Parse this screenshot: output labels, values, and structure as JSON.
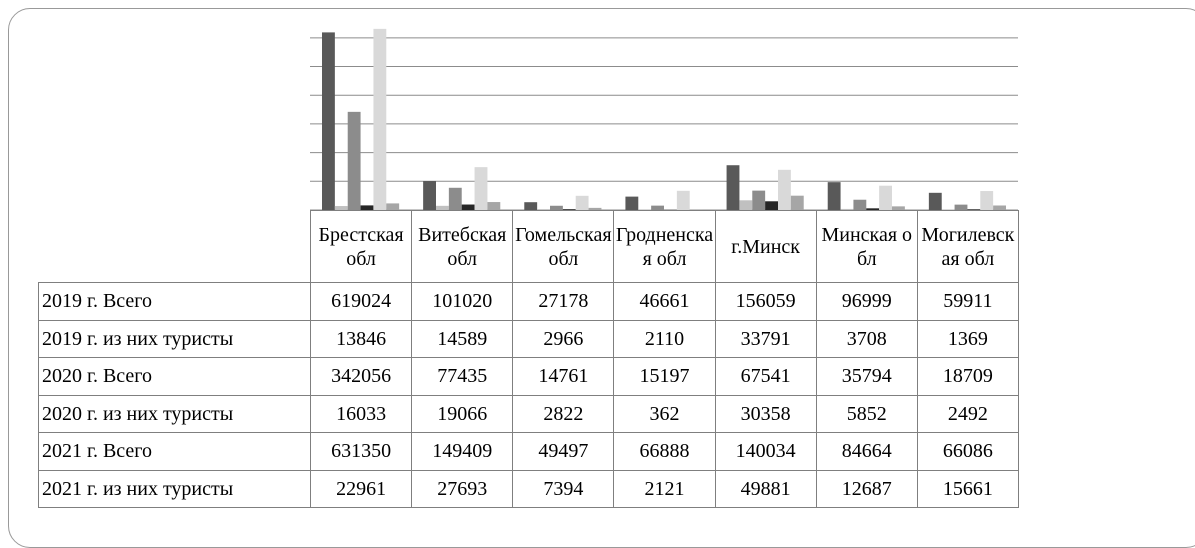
{
  "chart_data": {
    "type": "bar",
    "categories": [
      "Брестская обл",
      "Витебская обл",
      "Гомельская обл",
      "Гродненская обл",
      "г.Минск",
      "Минская обл",
      "Могилевская обл"
    ],
    "series": [
      {
        "name": "2019 г. Всего",
        "color": "#595959",
        "values": [
          619024,
          101020,
          27178,
          46661,
          156059,
          96999,
          59911
        ]
      },
      {
        "name": "2019 г. из них туристы",
        "color": "#c0c0c0",
        "values": [
          13846,
          14589,
          2966,
          2110,
          33791,
          3708,
          1369
        ]
      },
      {
        "name": "2020 г. Всего",
        "color": "#8c8c8c",
        "values": [
          342056,
          77435,
          14761,
          15197,
          67541,
          35794,
          18709
        ]
      },
      {
        "name": "2020 г. из них туристы",
        "color": "#262626",
        "values": [
          16033,
          19066,
          2822,
          362,
          30358,
          5852,
          2492
        ]
      },
      {
        "name": "2021 г. Всего",
        "color": "#d9d9d9",
        "values": [
          631350,
          149409,
          49497,
          66888,
          140034,
          84664,
          66086
        ]
      },
      {
        "name": "2021 г. из них туристы",
        "color": "#a6a6a6",
        "values": [
          22961,
          27693,
          7394,
          2121,
          49881,
          12687,
          15661
        ]
      }
    ],
    "ylim": [
      0,
      650000
    ],
    "yticks": [
      0,
      100000,
      200000,
      300000,
      400000,
      500000,
      600000
    ],
    "grid": true
  }
}
